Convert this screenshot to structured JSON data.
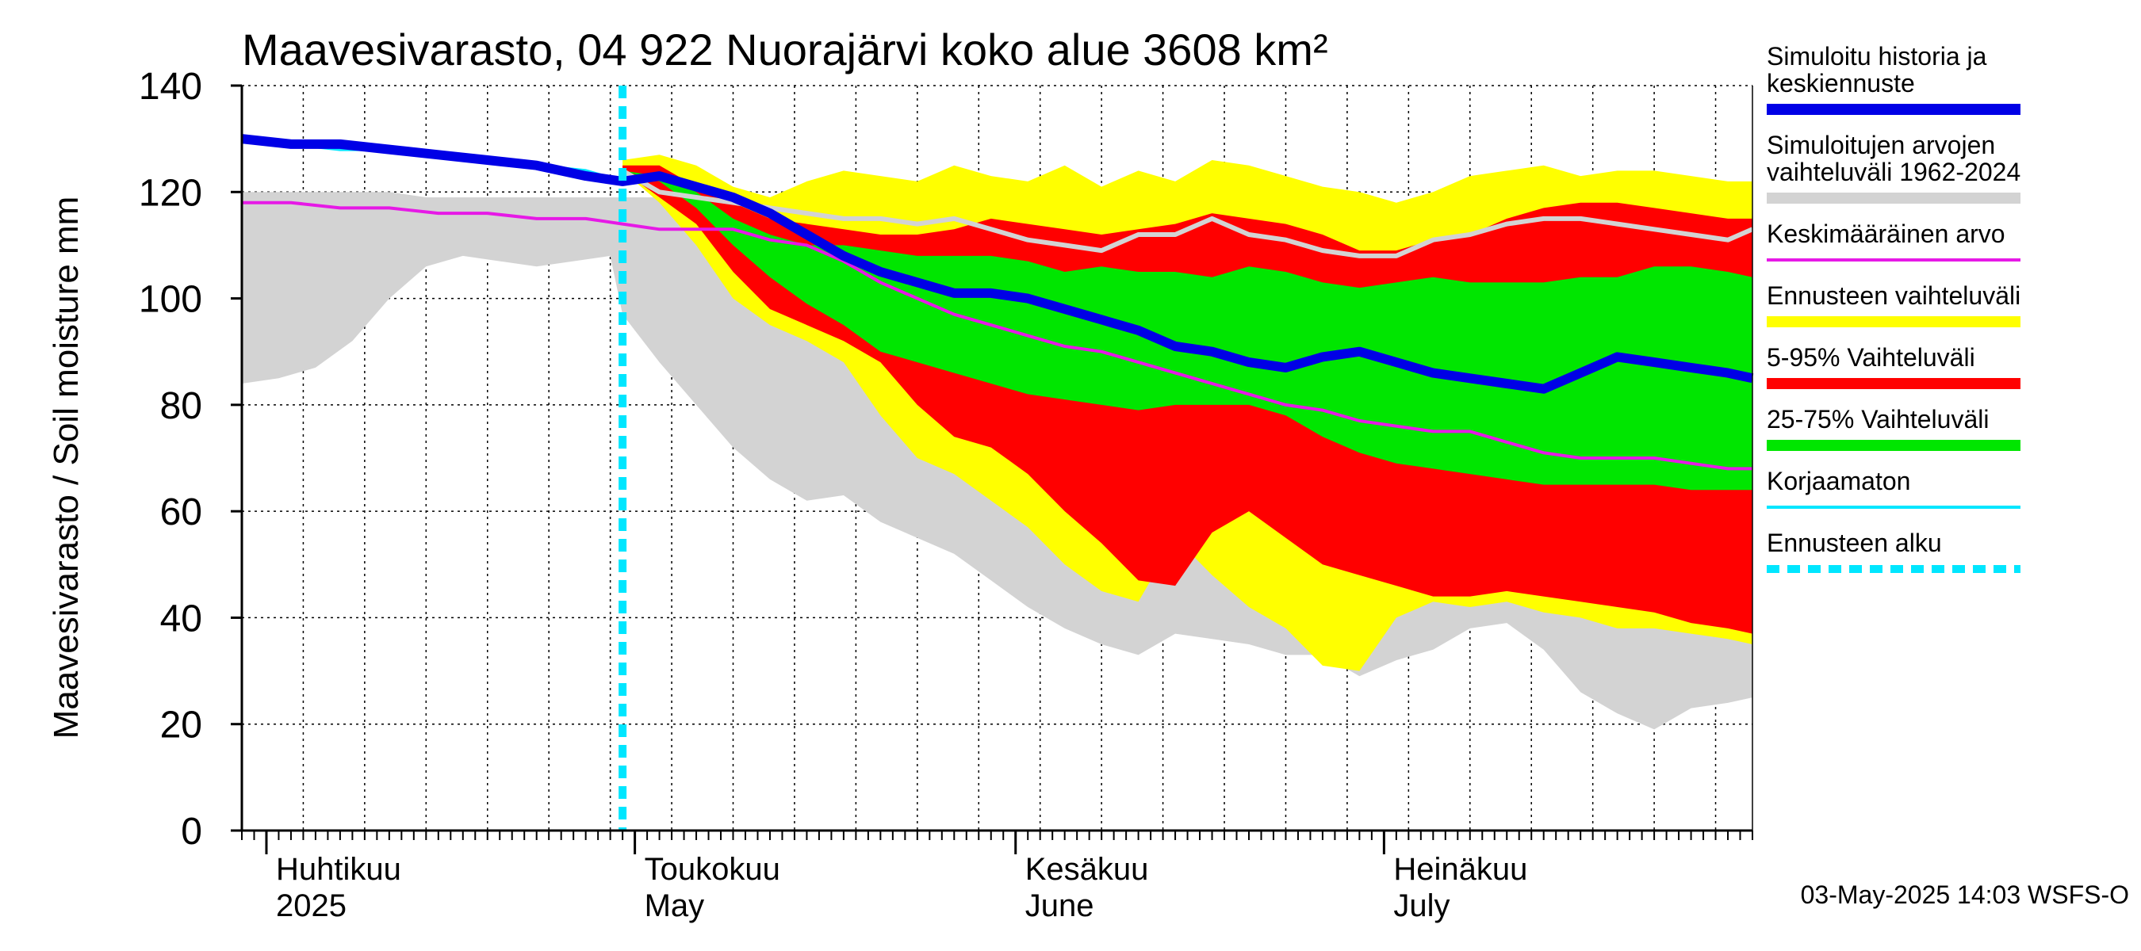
{
  "chart_data": {
    "type": "area",
    "title": "Maavesivarasto, 04 922 Nuorajärvi koko alue 3608 km²",
    "ylabel": "Maavesivarasto / Soil moisture   mm",
    "ylim": [
      0,
      140
    ],
    "yticks": [
      "0",
      "20",
      "40",
      "60",
      "80",
      "100",
      "120",
      "140"
    ],
    "xlim": [
      "2025-03-30",
      "2025-07-31"
    ],
    "forecast_start": "2025-04-30",
    "month_labels": [
      {
        "date": "2025-04-01",
        "line1": "Huhtikuu",
        "line2": "2025"
      },
      {
        "date": "2025-05-01",
        "line1": "Toukokuu",
        "line2": "May"
      },
      {
        "date": "2025-06-01",
        "line1": "Kesäkuu",
        "line2": "June"
      },
      {
        "date": "2025-07-01",
        "line1": "Heinäkuu",
        "line2": "July"
      }
    ],
    "legend": [
      {
        "label": "Simuloitu historia ja keskiennuste",
        "color": "#0000e6",
        "style": "thick"
      },
      {
        "label": "Simuloitujen arvojen vaihteluväli 1962-2024",
        "color": "#d3d3d3",
        "style": "thick"
      },
      {
        "label": "Keskimääräinen arvo",
        "color": "#e619e6",
        "style": "thin"
      },
      {
        "label": "Ennusteen vaihteluväli",
        "color": "#ffff00",
        "style": "thick"
      },
      {
        "label": "5-95% Vaihteluväli",
        "color": "#ff0000",
        "style": "thick"
      },
      {
        "label": "25-75% Vaihteluväli",
        "color": "#00e600",
        "style": "thick"
      },
      {
        "label": "Korjaamaton",
        "color": "#00e6ff",
        "style": "thin"
      },
      {
        "label": "Ennusteen alku",
        "color": "#00e6ff",
        "style": "dashed"
      }
    ],
    "footer": "03-May-2025 14:03 WSFS-O",
    "series": {
      "history_range": {
        "x": [
          "2025-03-30",
          "2025-04-02",
          "2025-04-05",
          "2025-04-08",
          "2025-04-11",
          "2025-04-14",
          "2025-04-17",
          "2025-04-20",
          "2025-04-23",
          "2025-04-26",
          "2025-04-29",
          "2025-04-30",
          "2025-05-03",
          "2025-05-06",
          "2025-05-09",
          "2025-05-12",
          "2025-05-15",
          "2025-05-18",
          "2025-05-21",
          "2025-05-24",
          "2025-05-27",
          "2025-05-30",
          "2025-06-02",
          "2025-06-05",
          "2025-06-08",
          "2025-06-11",
          "2025-06-14",
          "2025-06-17",
          "2025-06-20",
          "2025-06-23",
          "2025-06-26",
          "2025-06-29",
          "2025-07-02",
          "2025-07-05",
          "2025-07-08",
          "2025-07-11",
          "2025-07-14",
          "2025-07-17",
          "2025-07-20",
          "2025-07-23",
          "2025-07-26",
          "2025-07-29",
          "2025-07-31"
        ],
        "upper": [
          120,
          120,
          120,
          120,
          120,
          119,
          119,
          119,
          119,
          119,
          119,
          119,
          119,
          119,
          119,
          118,
          117,
          117,
          118,
          118,
          117,
          116,
          116,
          114,
          113,
          113,
          114,
          114,
          115,
          115,
          114,
          115,
          114,
          114,
          113,
          113,
          113,
          113,
          112,
          112,
          112,
          112,
          112
        ],
        "lower": [
          84,
          85,
          87,
          92,
          100,
          106,
          108,
          107,
          106,
          107,
          108,
          97,
          88,
          80,
          72,
          66,
          62,
          63,
          58,
          55,
          52,
          47,
          42,
          38,
          35,
          33,
          37,
          36,
          35,
          33,
          33,
          29,
          32,
          34,
          38,
          39,
          34,
          26,
          22,
          19,
          23,
          24,
          25
        ]
      },
      "forecast_range": {
        "x": [
          "2025-04-30",
          "2025-05-03",
          "2025-05-06",
          "2025-05-09",
          "2025-05-12",
          "2025-05-15",
          "2025-05-18",
          "2025-05-21",
          "2025-05-24",
          "2025-05-27",
          "2025-05-30",
          "2025-06-02",
          "2025-06-05",
          "2025-06-08",
          "2025-06-11",
          "2025-06-14",
          "2025-06-17",
          "2025-06-20",
          "2025-06-23",
          "2025-06-26",
          "2025-06-29",
          "2025-07-02",
          "2025-07-05",
          "2025-07-08",
          "2025-07-11",
          "2025-07-14",
          "2025-07-17",
          "2025-07-20",
          "2025-07-23",
          "2025-07-26",
          "2025-07-29",
          "2025-07-31"
        ],
        "upper": [
          126,
          127,
          125,
          121,
          119,
          122,
          124,
          123,
          122,
          125,
          123,
          122,
          125,
          121,
          124,
          122,
          126,
          125,
          123,
          121,
          120,
          118,
          120,
          123,
          124,
          125,
          123,
          124,
          124,
          123,
          122,
          122
        ],
        "lower": [
          124,
          118,
          110,
          100,
          95,
          92,
          88,
          78,
          70,
          67,
          62,
          57,
          50,
          45,
          43,
          55,
          48,
          42,
          38,
          31,
          30,
          40,
          43,
          42,
          43,
          41,
          40,
          38,
          38,
          37,
          36,
          35
        ]
      },
      "p5_95": {
        "x": [
          "2025-04-30",
          "2025-05-03",
          "2025-05-06",
          "2025-05-09",
          "2025-05-12",
          "2025-05-15",
          "2025-05-18",
          "2025-05-21",
          "2025-05-24",
          "2025-05-27",
          "2025-05-30",
          "2025-06-02",
          "2025-06-05",
          "2025-06-08",
          "2025-06-11",
          "2025-06-14",
          "2025-06-17",
          "2025-06-20",
          "2025-06-23",
          "2025-06-26",
          "2025-06-29",
          "2025-07-02",
          "2025-07-05",
          "2025-07-08",
          "2025-07-11",
          "2025-07-14",
          "2025-07-17",
          "2025-07-20",
          "2025-07-23",
          "2025-07-26",
          "2025-07-29",
          "2025-07-31"
        ],
        "upper": [
          125,
          125,
          121,
          118,
          115,
          114,
          113,
          112,
          112,
          113,
          115,
          114,
          113,
          112,
          113,
          114,
          116,
          115,
          114,
          112,
          109,
          109,
          111,
          112,
          115,
          117,
          118,
          118,
          117,
          116,
          115,
          115
        ],
        "lower": [
          124,
          119,
          114,
          105,
          98,
          95,
          92,
          88,
          80,
          74,
          72,
          67,
          60,
          54,
          47,
          46,
          56,
          60,
          55,
          50,
          48,
          46,
          44,
          44,
          45,
          44,
          43,
          42,
          41,
          39,
          38,
          37
        ]
      },
      "p25_75": {
        "x": [
          "2025-04-30",
          "2025-05-03",
          "2025-05-06",
          "2025-05-09",
          "2025-05-12",
          "2025-05-15",
          "2025-05-18",
          "2025-05-21",
          "2025-05-24",
          "2025-05-27",
          "2025-05-30",
          "2025-06-02",
          "2025-06-05",
          "2025-06-08",
          "2025-06-11",
          "2025-06-14",
          "2025-06-17",
          "2025-06-20",
          "2025-06-23",
          "2025-06-26",
          "2025-06-29",
          "2025-07-02",
          "2025-07-05",
          "2025-07-08",
          "2025-07-11",
          "2025-07-14",
          "2025-07-17",
          "2025-07-20",
          "2025-07-23",
          "2025-07-26",
          "2025-07-29",
          "2025-07-31"
        ],
        "upper": [
          124,
          123,
          120,
          115,
          112,
          110,
          110,
          109,
          108,
          108,
          108,
          107,
          105,
          106,
          105,
          105,
          104,
          106,
          105,
          103,
          102,
          103,
          104,
          103,
          103,
          103,
          104,
          104,
          106,
          106,
          105,
          104
        ],
        "lower": [
          124,
          122,
          117,
          110,
          104,
          99,
          95,
          90,
          88,
          86,
          84,
          82,
          81,
          80,
          79,
          80,
          80,
          80,
          78,
          74,
          71,
          69,
          68,
          67,
          66,
          65,
          65,
          65,
          65,
          64,
          64,
          64
        ]
      },
      "median_all": {
        "x": [
          "2025-04-30",
          "2025-05-03",
          "2025-05-06",
          "2025-05-09",
          "2025-05-12",
          "2025-05-15",
          "2025-05-18",
          "2025-05-21",
          "2025-05-24",
          "2025-05-27",
          "2025-05-30",
          "2025-06-02",
          "2025-06-05",
          "2025-06-08",
          "2025-06-11",
          "2025-06-14",
          "2025-06-17",
          "2025-06-20",
          "2025-06-23",
          "2025-06-26",
          "2025-06-29",
          "2025-07-02",
          "2025-07-05",
          "2025-07-08",
          "2025-07-11",
          "2025-07-14",
          "2025-07-17",
          "2025-07-20",
          "2025-07-23",
          "2025-07-26",
          "2025-07-29",
          "2025-07-31"
        ],
        "values": [
          124,
          120,
          119,
          118,
          117,
          116,
          115,
          115,
          114,
          115,
          113,
          111,
          110,
          109,
          112,
          112,
          115,
          112,
          111,
          109,
          108,
          108,
          111,
          112,
          114,
          115,
          115,
          114,
          113,
          112,
          111,
          113
        ]
      },
      "mean": {
        "x": [
          "2025-03-30",
          "2025-04-03",
          "2025-04-07",
          "2025-04-11",
          "2025-04-15",
          "2025-04-19",
          "2025-04-23",
          "2025-04-27",
          "2025-04-30",
          "2025-05-03",
          "2025-05-06",
          "2025-05-09",
          "2025-05-12",
          "2025-05-15",
          "2025-05-18",
          "2025-05-21",
          "2025-05-24",
          "2025-05-27",
          "2025-05-30",
          "2025-06-02",
          "2025-06-05",
          "2025-06-08",
          "2025-06-11",
          "2025-06-14",
          "2025-06-17",
          "2025-06-20",
          "2025-06-23",
          "2025-06-26",
          "2025-06-29",
          "2025-07-02",
          "2025-07-05",
          "2025-07-08",
          "2025-07-11",
          "2025-07-14",
          "2025-07-17",
          "2025-07-20",
          "2025-07-23",
          "2025-07-26",
          "2025-07-29",
          "2025-07-31"
        ],
        "values": [
          118,
          118,
          117,
          117,
          116,
          116,
          115,
          115,
          114,
          113,
          113,
          113,
          111,
          110,
          107,
          103,
          100,
          97,
          95,
          93,
          91,
          90,
          88,
          86,
          84,
          82,
          80,
          79,
          77,
          76,
          75,
          75,
          73,
          71,
          70,
          70,
          70,
          69,
          68,
          68
        ]
      },
      "simulated_median": {
        "x": [
          "2025-03-30",
          "2025-04-03",
          "2025-04-07",
          "2025-04-11",
          "2025-04-15",
          "2025-04-19",
          "2025-04-23",
          "2025-04-27",
          "2025-04-30",
          "2025-05-03",
          "2025-05-06",
          "2025-05-09",
          "2025-05-12",
          "2025-05-15",
          "2025-05-18",
          "2025-05-21",
          "2025-05-24",
          "2025-05-27",
          "2025-05-30",
          "2025-06-02",
          "2025-06-05",
          "2025-06-08",
          "2025-06-11",
          "2025-06-14",
          "2025-06-17",
          "2025-06-20",
          "2025-06-23",
          "2025-06-26",
          "2025-06-29",
          "2025-07-02",
          "2025-07-05",
          "2025-07-08",
          "2025-07-11",
          "2025-07-14",
          "2025-07-17",
          "2025-07-20",
          "2025-07-23",
          "2025-07-26",
          "2025-07-29",
          "2025-07-31"
        ],
        "values": [
          130,
          129,
          129,
          128,
          127,
          126,
          125,
          123,
          122,
          123,
          121,
          119,
          116,
          112,
          108,
          105,
          103,
          101,
          101,
          100,
          98,
          96,
          94,
          91,
          90,
          88,
          87,
          89,
          90,
          88,
          86,
          85,
          84,
          83,
          86,
          89,
          88,
          87,
          86,
          85
        ]
      },
      "uncorrected": {
        "x": [
          "2025-03-30",
          "2025-04-03",
          "2025-04-07",
          "2025-04-11",
          "2025-04-15",
          "2025-04-19",
          "2025-04-23",
          "2025-04-27",
          "2025-04-30"
        ],
        "values": [
          130,
          129,
          128,
          128,
          127,
          126,
          125,
          124,
          122
        ]
      }
    }
  }
}
